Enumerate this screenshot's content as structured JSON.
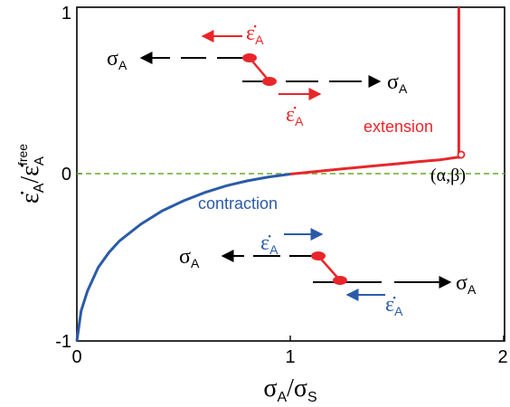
{
  "chart_data": {
    "type": "line",
    "xlabel": "σA/σS",
    "ylabel": "ε̇A/ε̇Afree",
    "xlim": [
      0,
      2
    ],
    "ylim": [
      -1,
      1
    ],
    "x_ticks": [
      "0",
      "1",
      "2"
    ],
    "y_ticks": [
      "-1",
      "0",
      "1"
    ],
    "series": [
      {
        "name": "contraction",
        "color": "#2b5ba8",
        "points": [
          [
            0.0,
            -1.0
          ],
          [
            0.02,
            -0.82
          ],
          [
            0.05,
            -0.7
          ],
          [
            0.1,
            -0.56
          ],
          [
            0.15,
            -0.47
          ],
          [
            0.2,
            -0.4
          ],
          [
            0.3,
            -0.3
          ],
          [
            0.4,
            -0.22
          ],
          [
            0.5,
            -0.16
          ],
          [
            0.6,
            -0.11
          ],
          [
            0.7,
            -0.07
          ],
          [
            0.8,
            -0.04
          ],
          [
            0.9,
            -0.017
          ],
          [
            1.0,
            0.0
          ]
        ]
      },
      {
        "name": "extension",
        "color": "#e8262a",
        "points": [
          [
            1.0,
            0.0
          ],
          [
            1.1,
            0.013
          ],
          [
            1.2,
            0.026
          ],
          [
            1.3,
            0.038
          ],
          [
            1.4,
            0.05
          ],
          [
            1.5,
            0.062
          ],
          [
            1.6,
            0.074
          ],
          [
            1.7,
            0.085
          ],
          [
            1.78,
            0.1
          ],
          [
            1.79,
            0.1
          ],
          [
            1.79,
            1.0
          ]
        ]
      }
    ],
    "zero_line_color": "#6aaa2a",
    "annotations": {
      "extension_label": "extension",
      "contraction_label": "contraction",
      "point_label": "(α,β)"
    },
    "insets": {
      "stress_label": "σA",
      "strain_rate_label": "ε̇A"
    }
  },
  "colors": {
    "red": "#e8262a",
    "blue": "#2b5ba8",
    "black": "#000000"
  }
}
